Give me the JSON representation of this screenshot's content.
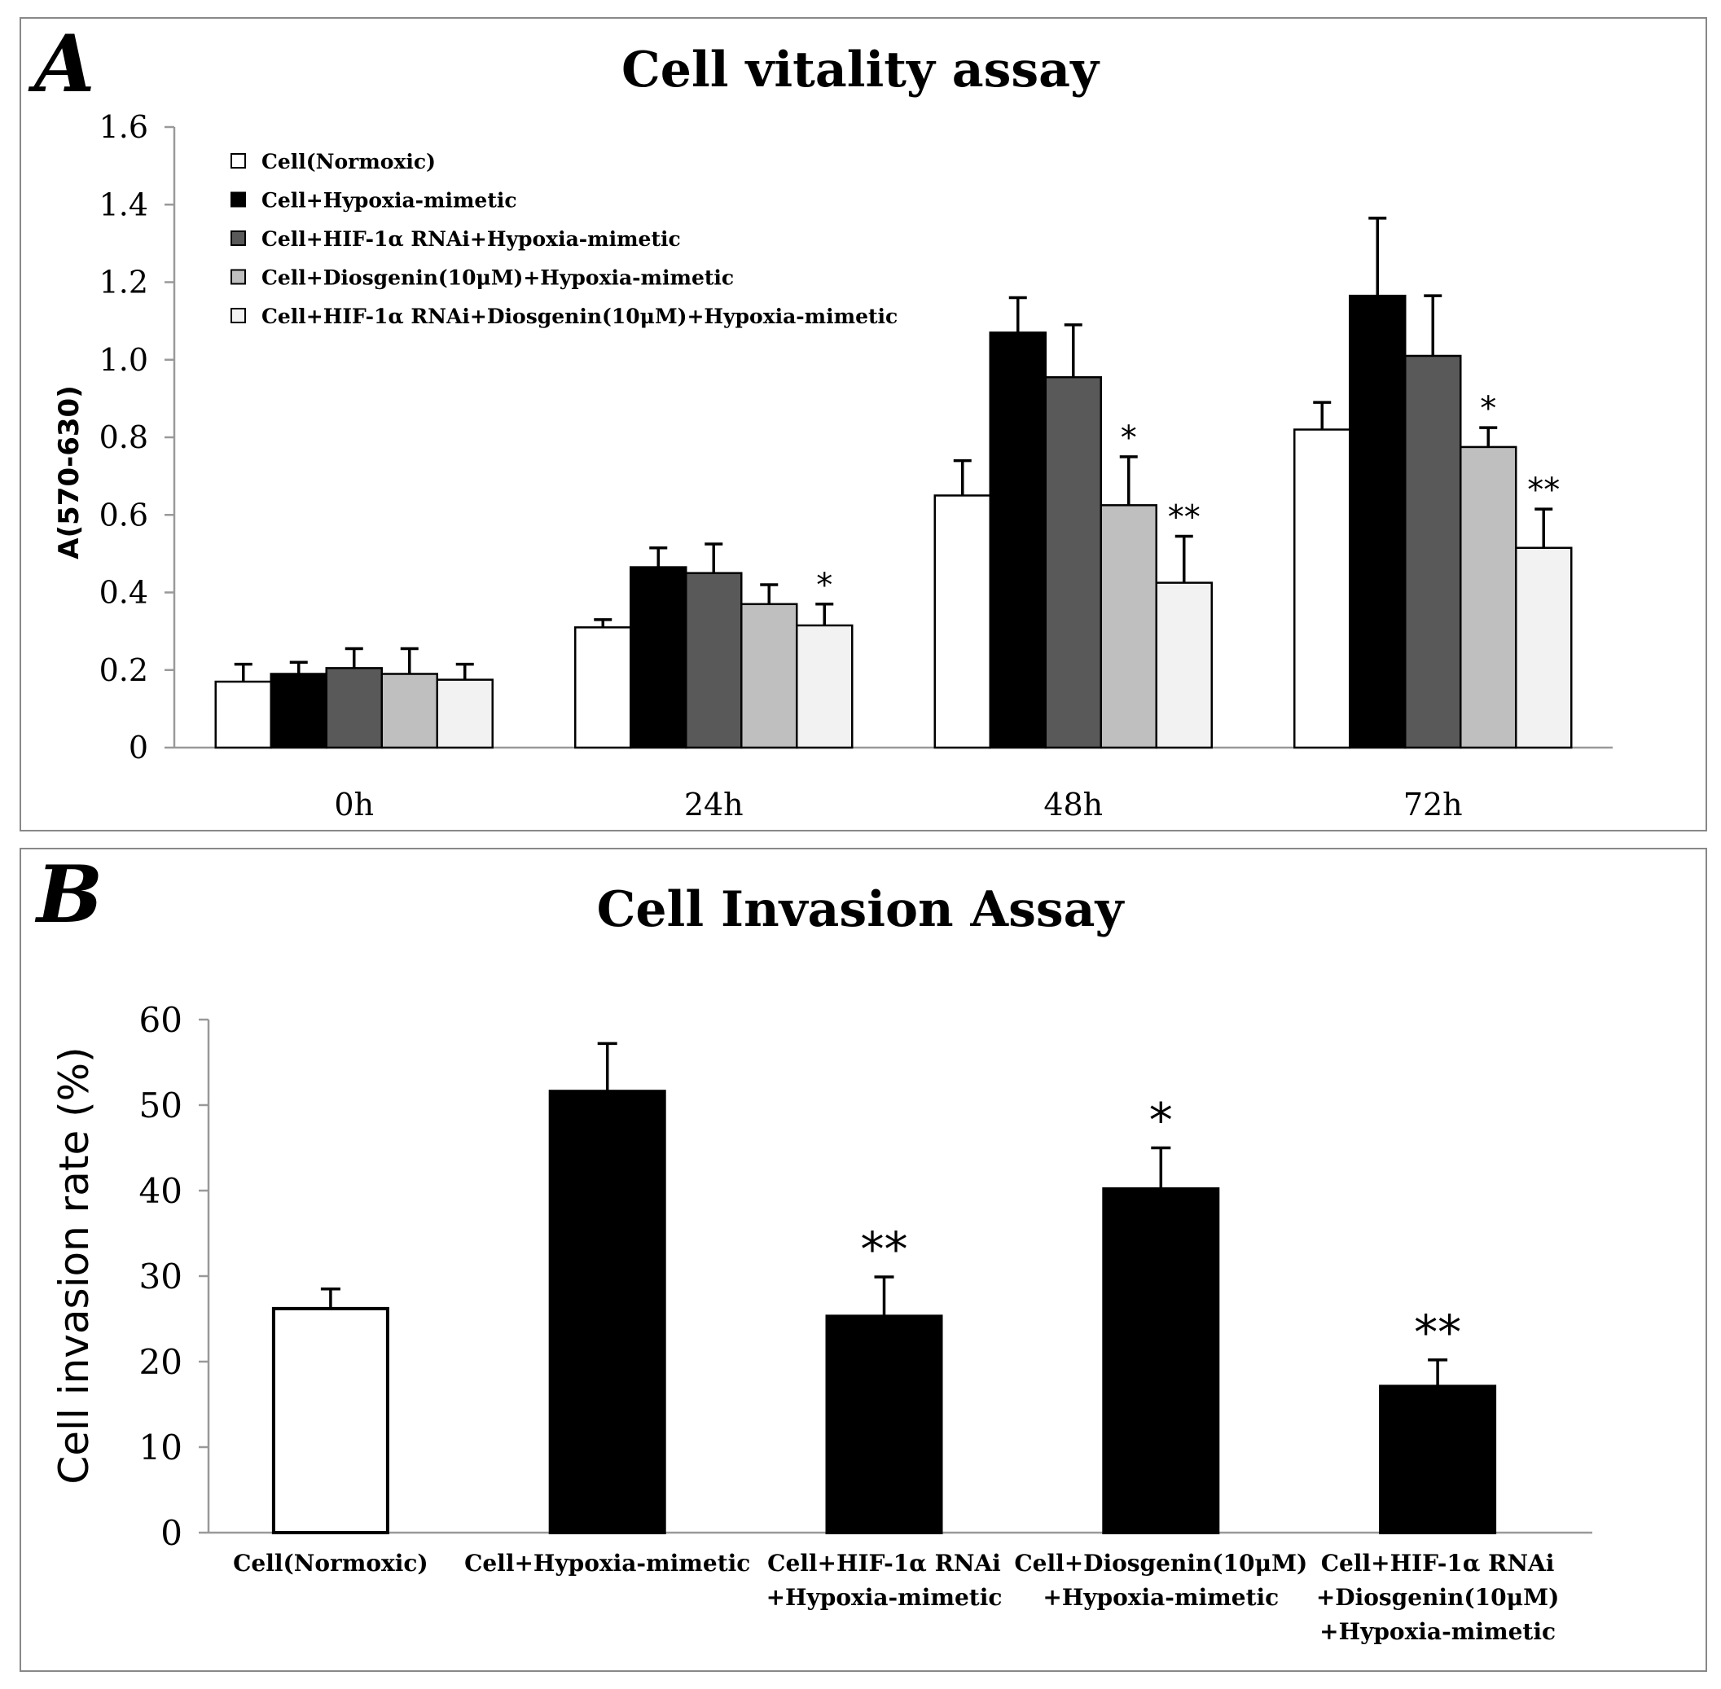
{
  "chart_data": [
    {
      "panel": "A",
      "type": "bar",
      "title": "Cell vitality  assay",
      "xlabel": "",
      "ylabel": "A(570-630)",
      "ylim": [
        0,
        1.6
      ],
      "yticks": [
        "0",
        "0.2",
        "0.4",
        "0.6",
        "0.8",
        "1.0",
        "1.2",
        "1.4",
        "1.6"
      ],
      "categories": [
        "0h",
        "24h",
        "48h",
        "72h"
      ],
      "legend_position": "top-left",
      "series": [
        {
          "name": "Cell(Normoxic)",
          "color": "#ffffff",
          "values": [
            0.17,
            0.31,
            0.65,
            0.82
          ],
          "errors": [
            0.045,
            0.02,
            0.09,
            0.07
          ],
          "significance": [
            "",
            "",
            "",
            ""
          ]
        },
        {
          "name": "Cell+Hypoxia-mimetic",
          "color": "#000000",
          "values": [
            0.19,
            0.465,
            1.07,
            1.165
          ],
          "errors": [
            0.03,
            0.05,
            0.09,
            0.2
          ],
          "significance": [
            "",
            "",
            "",
            ""
          ]
        },
        {
          "name": "Cell+HIF-1α RNAi+Hypoxia-mimetic",
          "color": "#595959",
          "values": [
            0.205,
            0.45,
            0.955,
            1.01
          ],
          "errors": [
            0.05,
            0.075,
            0.135,
            0.155
          ],
          "significance": [
            "",
            "",
            "",
            ""
          ]
        },
        {
          "name": "Cell+Diosgenin(10μM)+Hypoxia-mimetic",
          "color": "#bfbfbf",
          "values": [
            0.19,
            0.37,
            0.625,
            0.775
          ],
          "errors": [
            0.065,
            0.05,
            0.125,
            0.05
          ],
          "significance": [
            "",
            "",
            "*",
            "*"
          ]
        },
        {
          "name": "Cell+HIF-1α RNAi+Diosgenin(10μM)+Hypoxia-mimetic",
          "color": "#f2f2f2",
          "values": [
            0.175,
            0.315,
            0.425,
            0.515
          ],
          "errors": [
            0.04,
            0.055,
            0.12,
            0.1
          ],
          "significance": [
            "",
            "*",
            "**",
            "**"
          ]
        }
      ]
    },
    {
      "panel": "B",
      "type": "bar",
      "title": "Cell Invasion Assay",
      "xlabel": "",
      "ylabel": "Cell invasion rate (%)",
      "ylim": [
        0,
        60
      ],
      "yticks": [
        "0",
        "10",
        "20",
        "30",
        "40",
        "50",
        "60"
      ],
      "categories": [
        [
          "Cell(Normoxic)"
        ],
        [
          "Cell+Hypoxia-mimetic"
        ],
        [
          "Cell+HIF-1α RNAi",
          "+Hypoxia-mimetic"
        ],
        [
          "Cell+Diosgenin(10μM)",
          "+Hypoxia-mimetic"
        ],
        [
          "Cell+HIF-1α RNAi",
          "+Diosgenin(10μM)",
          "+Hypoxia-mimetic"
        ]
      ],
      "colors": [
        "#ffffff",
        "#000000",
        "#000000",
        "#000000",
        "#000000"
      ],
      "values": [
        26.2,
        51.6,
        25.3,
        40.2,
        17.1
      ],
      "errors": [
        2.3,
        5.6,
        4.6,
        4.8,
        3.1
      ],
      "significance": [
        "",
        "",
        "**",
        "*",
        "**"
      ]
    }
  ]
}
